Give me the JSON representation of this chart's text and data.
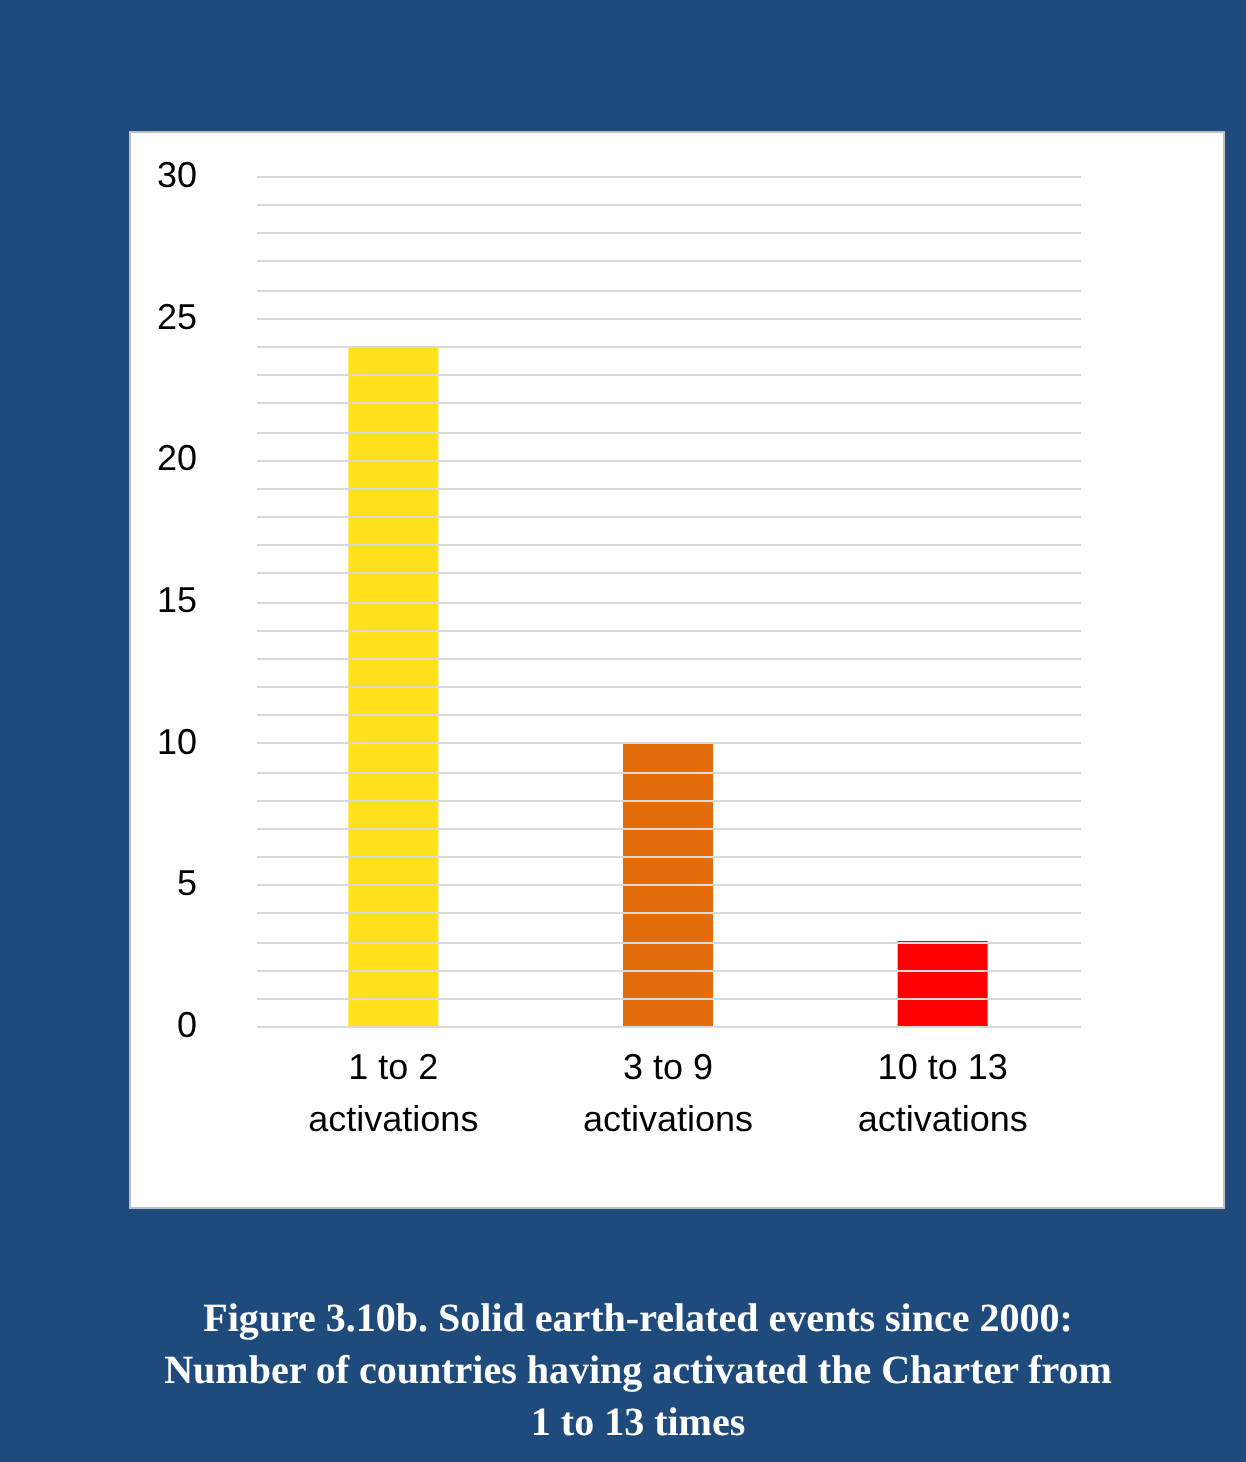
{
  "chart_data": {
    "type": "bar",
    "title": "Figure 3.10b. Solid earth-related events since 2000: Number of countries having activated the Charter from 1 to 13 times",
    "categories": [
      "1 to 2 activations",
      "3 to 9 activations",
      "10 to 13 activations"
    ],
    "values": [
      24,
      10,
      3
    ],
    "colors": [
      "#ffe11a",
      "#e46c0a",
      "#ff0000"
    ],
    "ylim": [
      0,
      30
    ],
    "yticks": [
      0,
      {
        "value": 1,
        "label": null
      },
      {
        "value": 2,
        "label": null
      },
      {
        "value": 3,
        "label": null
      },
      {
        "value": 4,
        "label": null
      },
      5,
      {
        "value": 6,
        "label": null
      },
      {
        "value": 7,
        "label": null
      },
      {
        "value": 8,
        "label": null
      },
      {
        "value": 9,
        "label": null
      },
      10,
      {
        "value": 11,
        "label": null
      },
      {
        "value": 12,
        "label": null
      },
      {
        "value": 13,
        "label": null
      },
      {
        "value": 14,
        "label": null
      },
      15,
      {
        "value": 16,
        "label": null
      },
      {
        "value": 17,
        "label": null
      },
      {
        "value": 18,
        "label": null
      },
      {
        "value": 19,
        "label": null
      },
      20,
      {
        "value": 21,
        "label": null
      },
      {
        "value": 22,
        "label": null
      },
      {
        "value": 23,
        "label": null
      },
      {
        "value": 24,
        "label": null
      },
      25,
      {
        "value": 26,
        "label": null
      },
      {
        "value": 27,
        "label": null
      },
      {
        "value": 28,
        "label": null
      },
      {
        "value": 29,
        "label": null
      },
      30
    ],
    "grid": true
  }
}
